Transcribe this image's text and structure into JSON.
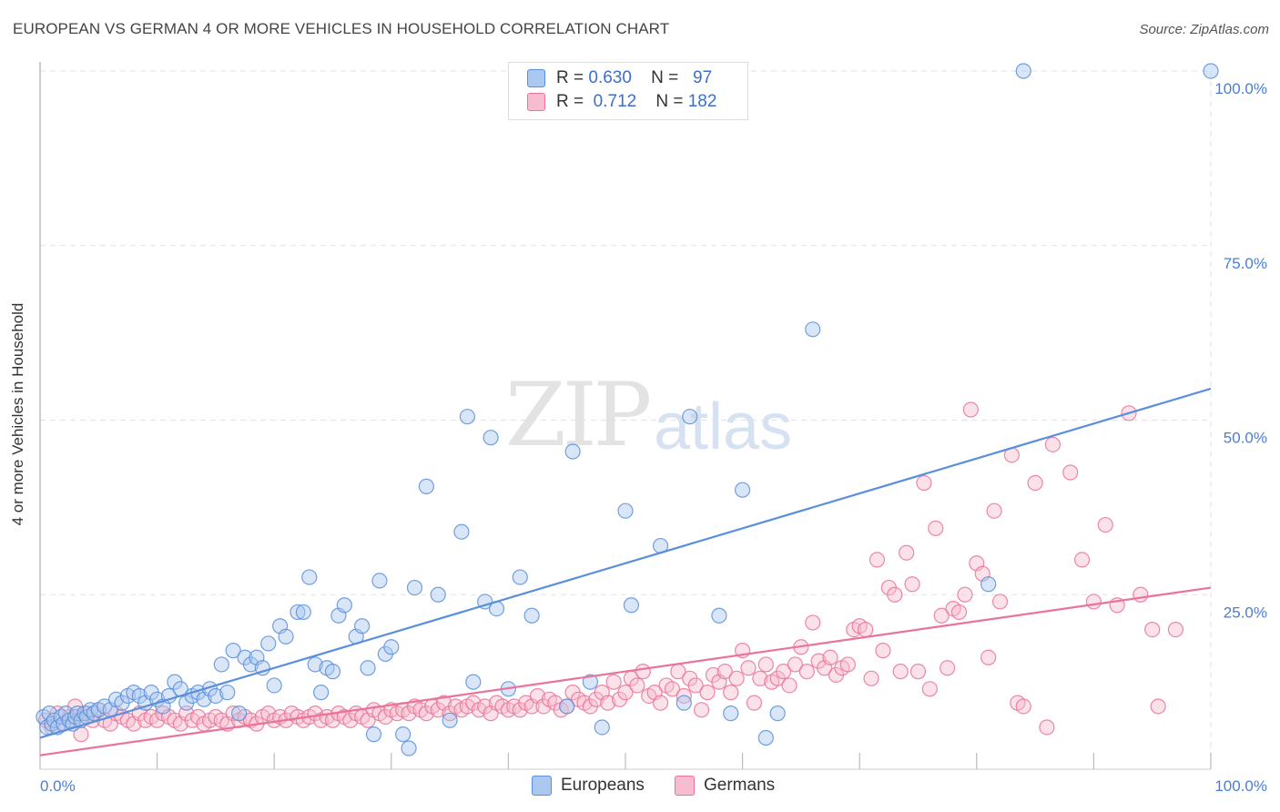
{
  "title": "EUROPEAN VS GERMAN 4 OR MORE VEHICLES IN HOUSEHOLD CORRELATION CHART",
  "source": "Source: ZipAtlas.com",
  "watermark": {
    "zip": "ZIP",
    "atlas": "atlas"
  },
  "legend": {
    "rows": [
      {
        "r_label": "R =",
        "r_value": "0.630",
        "n_label": "N =",
        "n_value": "97"
      },
      {
        "r_label": "R =",
        "r_value": "0.712",
        "n_label": "N =",
        "n_value": "182"
      }
    ]
  },
  "chart_data": {
    "type": "scatter",
    "title": "EUROPEAN VS GERMAN 4 OR MORE VEHICLES IN HOUSEHOLD CORRELATION CHART",
    "xlabel": "",
    "ylabel": "4 or more Vehicles in Household",
    "xlim": [
      0,
      100
    ],
    "ylim": [
      0,
      100
    ],
    "x_tick_labels": [
      "0.0%",
      "100.0%"
    ],
    "y_tick_values": [
      25,
      50,
      75,
      100
    ],
    "y_tick_labels": [
      "25.0%",
      "50.0%",
      "75.0%",
      "100.0%"
    ],
    "grid": true,
    "legend_position": "top-center",
    "series": [
      {
        "name": "Europeans",
        "color": "#5a8fdb",
        "fill": "#aac8f0",
        "r": 0.63,
        "n": 97,
        "trend": [
          [
            0,
            4.5
          ],
          [
            100,
            54.5
          ]
        ],
        "points": [
          [
            0.3,
            7.5
          ],
          [
            0.6,
            6
          ],
          [
            0.8,
            8
          ],
          [
            1,
            6.5
          ],
          [
            1.2,
            7
          ],
          [
            1.5,
            6
          ],
          [
            1.8,
            7.5
          ],
          [
            2,
            6.5
          ],
          [
            2.2,
            8
          ],
          [
            2.5,
            7
          ],
          [
            2.8,
            6.5
          ],
          [
            3,
            7.5
          ],
          [
            3.2,
            8
          ],
          [
            3.5,
            7
          ],
          [
            3.8,
            8
          ],
          [
            4,
            7.5
          ],
          [
            4.3,
            8.5
          ],
          [
            4.6,
            8
          ],
          [
            5,
            8.5
          ],
          [
            5.5,
            9
          ],
          [
            6,
            8.5
          ],
          [
            6.5,
            10
          ],
          [
            7,
            9.5
          ],
          [
            7.5,
            10.5
          ],
          [
            8,
            11
          ],
          [
            8.5,
            10.5
          ],
          [
            9,
            9.5
          ],
          [
            9.5,
            11
          ],
          [
            10,
            10
          ],
          [
            10.5,
            9
          ],
          [
            11,
            10.5
          ],
          [
            11.5,
            12.5
          ],
          [
            12,
            11.5
          ],
          [
            12.5,
            9.5
          ],
          [
            13,
            10.5
          ],
          [
            13.5,
            11
          ],
          [
            14,
            10
          ],
          [
            14.5,
            11.5
          ],
          [
            15,
            10.5
          ],
          [
            15.5,
            15
          ],
          [
            16,
            11
          ],
          [
            16.5,
            17
          ],
          [
            17,
            8
          ],
          [
            17.5,
            16
          ],
          [
            18,
            15
          ],
          [
            18.5,
            16
          ],
          [
            19,
            14.5
          ],
          [
            19.5,
            18
          ],
          [
            20,
            12
          ],
          [
            20.5,
            20.5
          ],
          [
            21,
            19
          ],
          [
            22,
            22.5
          ],
          [
            22.5,
            22.5
          ],
          [
            23,
            27.5
          ],
          [
            23.5,
            15
          ],
          [
            24,
            11
          ],
          [
            24.5,
            14.5
          ],
          [
            25,
            14
          ],
          [
            25.5,
            22
          ],
          [
            26,
            23.5
          ],
          [
            27,
            19
          ],
          [
            27.5,
            20.5
          ],
          [
            28,
            14.5
          ],
          [
            28.5,
            5
          ],
          [
            29,
            27
          ],
          [
            29.5,
            16.5
          ],
          [
            30,
            17.5
          ],
          [
            31,
            5
          ],
          [
            31.5,
            3
          ],
          [
            32,
            26
          ],
          [
            33,
            40.5
          ],
          [
            34,
            25
          ],
          [
            35,
            7
          ],
          [
            36,
            34
          ],
          [
            36.5,
            50.5
          ],
          [
            37,
            12.5
          ],
          [
            38,
            24
          ],
          [
            38.5,
            47.5
          ],
          [
            39,
            23
          ],
          [
            40,
            11.5
          ],
          [
            41,
            27.5
          ],
          [
            42,
            22
          ],
          [
            45,
            9
          ],
          [
            45.5,
            45.5
          ],
          [
            47,
            12.5
          ],
          [
            48,
            6
          ],
          [
            50,
            37
          ],
          [
            50.5,
            23.5
          ],
          [
            53,
            32
          ],
          [
            55,
            9.5
          ],
          [
            55.5,
            50.5
          ],
          [
            58,
            22
          ],
          [
            59,
            8
          ],
          [
            60,
            40
          ],
          [
            62,
            4.5
          ],
          [
            63,
            8
          ],
          [
            66,
            63
          ],
          [
            81,
            26.5
          ],
          [
            84,
            100
          ],
          [
            100,
            100
          ]
        ]
      },
      {
        "name": "Germans",
        "color": "#e9739a",
        "fill": "#f7bccd",
        "r": 0.712,
        "n": 182,
        "trend": [
          [
            0,
            2
          ],
          [
            100,
            26
          ]
        ],
        "points": [
          [
            0.5,
            7
          ],
          [
            1,
            6
          ],
          [
            1.5,
            8
          ],
          [
            2,
            6.5
          ],
          [
            2.5,
            7.5
          ],
          [
            3,
            9
          ],
          [
            3.5,
            5
          ],
          [
            4,
            8
          ],
          [
            4.5,
            7
          ],
          [
            5,
            8.5
          ],
          [
            5.5,
            7
          ],
          [
            6,
            6.5
          ],
          [
            6.5,
            8
          ],
          [
            7,
            7.5
          ],
          [
            7.5,
            7
          ],
          [
            8,
            6.5
          ],
          [
            8.5,
            8
          ],
          [
            9,
            7
          ],
          [
            9.5,
            7.5
          ],
          [
            10,
            7
          ],
          [
            10.5,
            8
          ],
          [
            11,
            7.5
          ],
          [
            11.5,
            7
          ],
          [
            12,
            6.5
          ],
          [
            12.5,
            8
          ],
          [
            13,
            7
          ],
          [
            13.5,
            7.5
          ],
          [
            14,
            6.5
          ],
          [
            14.5,
            7
          ],
          [
            15,
            7.5
          ],
          [
            15.5,
            7
          ],
          [
            16,
            6.5
          ],
          [
            16.5,
            8
          ],
          [
            17,
            7
          ],
          [
            17.5,
            7.5
          ],
          [
            18,
            7
          ],
          [
            18.5,
            6.5
          ],
          [
            19,
            7.5
          ],
          [
            19.5,
            8
          ],
          [
            20,
            7
          ],
          [
            20.5,
            7.5
          ],
          [
            21,
            7
          ],
          [
            21.5,
            8
          ],
          [
            22,
            7.5
          ],
          [
            22.5,
            7
          ],
          [
            23,
            7.5
          ],
          [
            23.5,
            8
          ],
          [
            24,
            7
          ],
          [
            24.5,
            7.5
          ],
          [
            25,
            7
          ],
          [
            25.5,
            8
          ],
          [
            26,
            7.5
          ],
          [
            26.5,
            7
          ],
          [
            27,
            8
          ],
          [
            27.5,
            7.5
          ],
          [
            28,
            7
          ],
          [
            28.5,
            8.5
          ],
          [
            29,
            8
          ],
          [
            29.5,
            7.5
          ],
          [
            30,
            8.5
          ],
          [
            30.5,
            8
          ],
          [
            31,
            8.5
          ],
          [
            31.5,
            8
          ],
          [
            32,
            9
          ],
          [
            32.5,
            8.5
          ],
          [
            33,
            8
          ],
          [
            33.5,
            9
          ],
          [
            34,
            8.5
          ],
          [
            34.5,
            9.5
          ],
          [
            35,
            8
          ],
          [
            35.5,
            9
          ],
          [
            36,
            8.5
          ],
          [
            36.5,
            9
          ],
          [
            37,
            9.5
          ],
          [
            37.5,
            8.5
          ],
          [
            38,
            9
          ],
          [
            38.5,
            8
          ],
          [
            39,
            9.5
          ],
          [
            39.5,
            9
          ],
          [
            40,
            8.5
          ],
          [
            40.5,
            9
          ],
          [
            41,
            8.5
          ],
          [
            41.5,
            9.5
          ],
          [
            42,
            9
          ],
          [
            42.5,
            10.5
          ],
          [
            43,
            9
          ],
          [
            43.5,
            10
          ],
          [
            44,
            9.5
          ],
          [
            44.5,
            8.5
          ],
          [
            45,
            9
          ],
          [
            45.5,
            11
          ],
          [
            46,
            10
          ],
          [
            46.5,
            9.5
          ],
          [
            47,
            9
          ],
          [
            47.5,
            10
          ],
          [
            48,
            11
          ],
          [
            48.5,
            9.5
          ],
          [
            49,
            12.5
          ],
          [
            49.5,
            10
          ],
          [
            50,
            11
          ],
          [
            50.5,
            13
          ],
          [
            51,
            12
          ],
          [
            51.5,
            14
          ],
          [
            52,
            10.5
          ],
          [
            52.5,
            11
          ],
          [
            53,
            9.5
          ],
          [
            53.5,
            12
          ],
          [
            54,
            11.5
          ],
          [
            54.5,
            14
          ],
          [
            55,
            10.5
          ],
          [
            55.5,
            13
          ],
          [
            56,
            12
          ],
          [
            56.5,
            8.5
          ],
          [
            57,
            11
          ],
          [
            57.5,
            13.5
          ],
          [
            58,
            12.5
          ],
          [
            58.5,
            14
          ],
          [
            59,
            11
          ],
          [
            59.5,
            13
          ],
          [
            60,
            17
          ],
          [
            60.5,
            14.5
          ],
          [
            61,
            9.5
          ],
          [
            61.5,
            13
          ],
          [
            62,
            15
          ],
          [
            62.5,
            12.5
          ],
          [
            63,
            13
          ],
          [
            63.5,
            14
          ],
          [
            64,
            12
          ],
          [
            64.5,
            15
          ],
          [
            65,
            17.5
          ],
          [
            65.5,
            14
          ],
          [
            66,
            21
          ],
          [
            66.5,
            15.5
          ],
          [
            67,
            14.5
          ],
          [
            67.5,
            16
          ],
          [
            68,
            13.5
          ],
          [
            68.5,
            14.5
          ],
          [
            69,
            15
          ],
          [
            69.5,
            20
          ],
          [
            70,
            20.5
          ],
          [
            70.5,
            20
          ],
          [
            71,
            13
          ],
          [
            71.5,
            30
          ],
          [
            72,
            17
          ],
          [
            72.5,
            26
          ],
          [
            73,
            25
          ],
          [
            73.5,
            14
          ],
          [
            74,
            31
          ],
          [
            74.5,
            26.5
          ],
          [
            75,
            14
          ],
          [
            75.5,
            41
          ],
          [
            76,
            11.5
          ],
          [
            76.5,
            34.5
          ],
          [
            77,
            22
          ],
          [
            77.5,
            14.5
          ],
          [
            78,
            23
          ],
          [
            78.5,
            22.5
          ],
          [
            79,
            25
          ],
          [
            79.5,
            51.5
          ],
          [
            80,
            29.5
          ],
          [
            80.5,
            28
          ],
          [
            81,
            16
          ],
          [
            81.5,
            37
          ],
          [
            82,
            24
          ],
          [
            83,
            45
          ],
          [
            83.5,
            9.5
          ],
          [
            84,
            9
          ],
          [
            85,
            41
          ],
          [
            86,
            6
          ],
          [
            86.5,
            46.5
          ],
          [
            88,
            42.5
          ],
          [
            89,
            30
          ],
          [
            90,
            24
          ],
          [
            91,
            35
          ],
          [
            92,
            23.5
          ],
          [
            93,
            51
          ],
          [
            94,
            25
          ],
          [
            95,
            20
          ],
          [
            95.5,
            9
          ],
          [
            97,
            20
          ]
        ]
      }
    ]
  }
}
